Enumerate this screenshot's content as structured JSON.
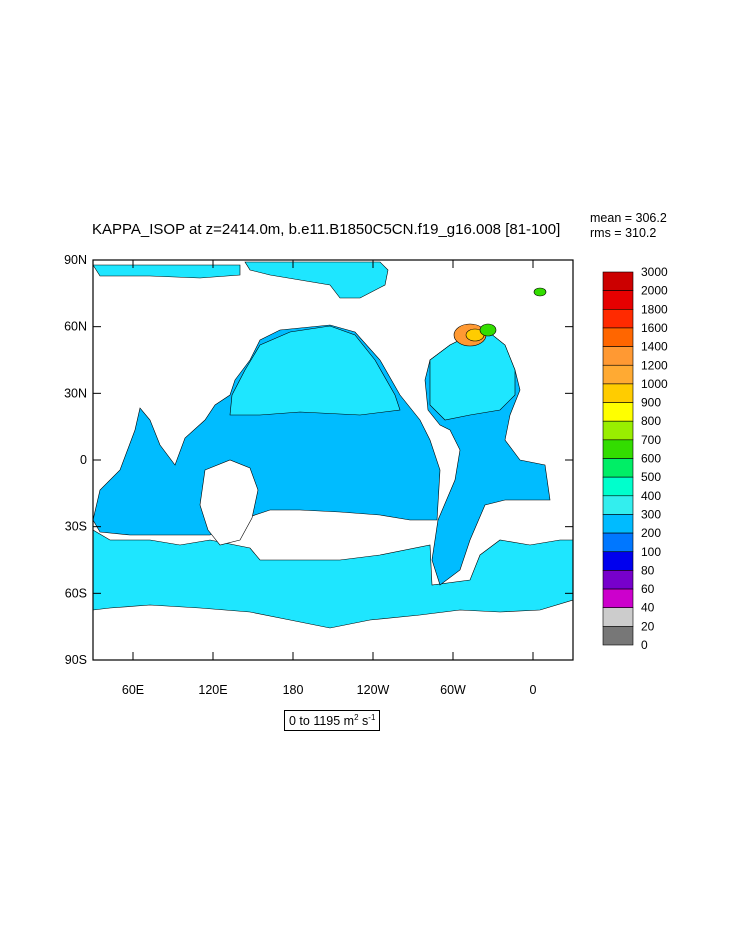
{
  "title": "KAPPA_ISOP at z=2414.0m, b.e11.B1850C5CN.f19_g16.008 [81-100]",
  "stats": {
    "mean": "mean = 306.2",
    "rms": "rms = 310.2"
  },
  "range": {
    "text": "0 to 1195 m",
    "exp1": "2",
    "mid": " s",
    "exp2": "-1"
  },
  "y_ticks": [
    "90N",
    "60N",
    "30N",
    "0",
    "30S",
    "60S",
    "90S"
  ],
  "x_ticks": [
    "60E",
    "120E",
    "180",
    "120W",
    "60W",
    "0"
  ],
  "colorbar": {
    "labels": [
      "3000",
      "2000",
      "1800",
      "1600",
      "1400",
      "1200",
      "1000",
      "900",
      "800",
      "700",
      "600",
      "500",
      "400",
      "300",
      "200",
      "100",
      "80",
      "60",
      "40",
      "20",
      "0"
    ],
    "colors": [
      "#cc0000",
      "#e60000",
      "#ff2a00",
      "#ff6600",
      "#ff9933",
      "#ffaa33",
      "#ffcc00",
      "#ffff00",
      "#99ee00",
      "#33dd00",
      "#00ee66",
      "#00ffcc",
      "#33eeee",
      "#00bbff",
      "#0077ff",
      "#0000ee",
      "#7700cc",
      "#cc00cc",
      "#cccccc",
      "#777777"
    ]
  },
  "colors": {
    "ocean_main": "#1ee6ff",
    "ocean_alt": "#00bcff",
    "land": "#ffffff"
  }
}
